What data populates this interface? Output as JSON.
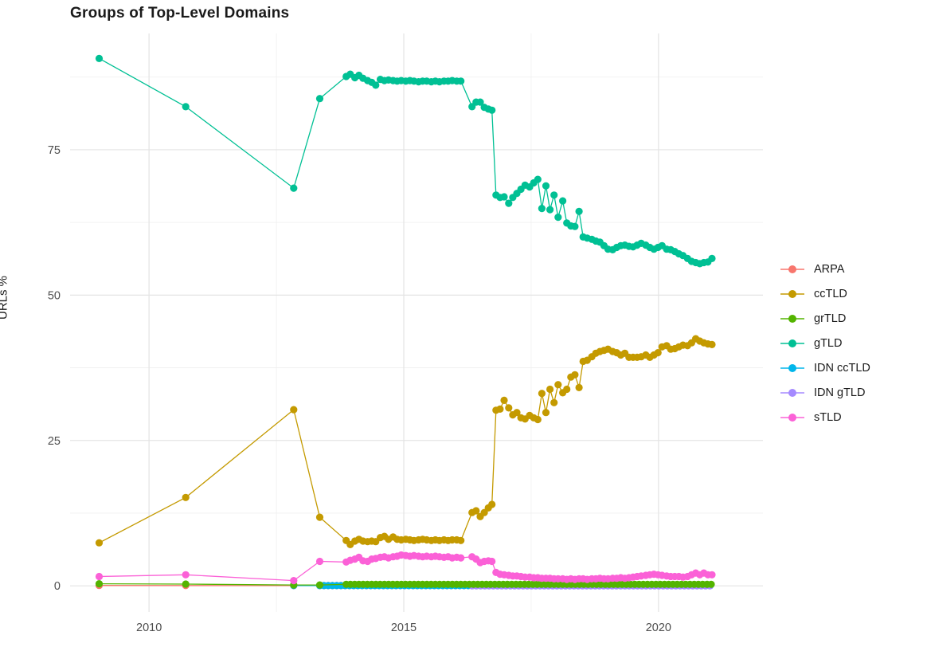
{
  "title": "Groups of Top-Level Domains",
  "chart_data": {
    "type": "line",
    "title": "Groups of Top-Level Domains",
    "xlabel": "",
    "ylabel": "URLs %",
    "xlim": [
      2008.45,
      2022.05
    ],
    "ylim": [
      -4.5,
      95
    ],
    "x_major_ticks": [
      2010,
      2015,
      2020
    ],
    "x_tick_labels": [
      "2010",
      "2015",
      "2020"
    ],
    "x_minor_ticks": [
      2012.5,
      2017.5
    ],
    "y_major_ticks": [
      0,
      25,
      50,
      75
    ],
    "y_tick_labels": [
      "0",
      "25",
      "50",
      "75"
    ],
    "y_minor_ticks": [
      12.5,
      37.5,
      62.5,
      87.5
    ],
    "grid": true,
    "legend_position": "right",
    "grid_major_color": "#e4e4e4",
    "grid_minor_color": "#efefef",
    "tick_label_color": "#4d4d4d",
    "draw_order": [
      "ARPA",
      "IDN ccTLD",
      "IDN gTLD",
      "grTLD",
      "gTLD",
      "ccTLD",
      "sTLD"
    ],
    "series": [
      {
        "name": "ARPA",
        "color": "#F8766D",
        "points": [
          [
            2009.02,
            0.06
          ],
          [
            2010.72,
            0.05
          ],
          [
            2012.84,
            0.04
          ]
        ],
        "flat": {
          "from": 2013.35,
          "to": 2021.05,
          "step": 0.0833,
          "value": 0.03
        }
      },
      {
        "name": "ccTLD",
        "color": "#C49A00",
        "points": [
          [
            2009.02,
            7.4
          ],
          [
            2010.72,
            15.2
          ],
          [
            2012.84,
            30.3
          ],
          [
            2013.35,
            11.8
          ],
          [
            2013.87,
            7.8
          ],
          [
            2013.95,
            7.1
          ],
          [
            2014.04,
            7.7
          ],
          [
            2014.12,
            8.0
          ],
          [
            2014.2,
            7.7
          ],
          [
            2014.29,
            7.6
          ],
          [
            2014.37,
            7.7
          ],
          [
            2014.45,
            7.6
          ],
          [
            2014.54,
            8.3
          ],
          [
            2014.62,
            8.5
          ],
          [
            2014.7,
            8.0
          ],
          [
            2014.79,
            8.4
          ],
          [
            2014.87,
            8.0
          ],
          [
            2014.95,
            7.9
          ],
          [
            2015.04,
            8.0
          ],
          [
            2015.12,
            7.9
          ],
          [
            2015.2,
            7.8
          ],
          [
            2015.29,
            7.9
          ],
          [
            2015.37,
            8.0
          ],
          [
            2015.45,
            7.9
          ],
          [
            2015.54,
            7.8
          ],
          [
            2015.62,
            7.9
          ],
          [
            2015.7,
            7.8
          ],
          [
            2015.79,
            7.9
          ],
          [
            2015.87,
            7.8
          ],
          [
            2015.95,
            7.9
          ],
          [
            2016.04,
            7.9
          ],
          [
            2016.12,
            7.8
          ],
          [
            2016.34,
            12.6
          ],
          [
            2016.42,
            12.9
          ],
          [
            2016.5,
            11.9
          ],
          [
            2016.58,
            12.6
          ],
          [
            2016.66,
            13.4
          ],
          [
            2016.73,
            14.0
          ],
          [
            2016.81,
            30.2
          ],
          [
            2016.89,
            30.4
          ],
          [
            2016.97,
            31.9
          ],
          [
            2017.06,
            30.6
          ],
          [
            2017.14,
            29.4
          ],
          [
            2017.22,
            29.8
          ],
          [
            2017.3,
            28.9
          ],
          [
            2017.38,
            28.7
          ],
          [
            2017.47,
            29.3
          ],
          [
            2017.55,
            28.9
          ],
          [
            2017.63,
            28.6
          ],
          [
            2017.71,
            33.1
          ],
          [
            2017.79,
            29.8
          ],
          [
            2017.87,
            33.8
          ],
          [
            2017.95,
            31.5
          ],
          [
            2018.03,
            34.6
          ],
          [
            2018.12,
            33.2
          ],
          [
            2018.2,
            33.8
          ],
          [
            2018.28,
            35.9
          ],
          [
            2018.36,
            36.3
          ],
          [
            2018.44,
            34.1
          ],
          [
            2018.52,
            38.6
          ],
          [
            2018.6,
            38.8
          ],
          [
            2018.69,
            39.4
          ],
          [
            2018.77,
            40.0
          ],
          [
            2018.85,
            40.3
          ],
          [
            2018.93,
            40.5
          ],
          [
            2019.01,
            40.7
          ],
          [
            2019.1,
            40.3
          ],
          [
            2019.18,
            40.1
          ],
          [
            2019.26,
            39.7
          ],
          [
            2019.34,
            40.0
          ],
          [
            2019.42,
            39.3
          ],
          [
            2019.5,
            39.3
          ],
          [
            2019.58,
            39.3
          ],
          [
            2019.66,
            39.4
          ],
          [
            2019.75,
            39.7
          ],
          [
            2019.83,
            39.3
          ],
          [
            2019.91,
            39.7
          ],
          [
            2019.99,
            40.1
          ],
          [
            2020.07,
            41.1
          ],
          [
            2020.16,
            41.3
          ],
          [
            2020.24,
            40.7
          ],
          [
            2020.32,
            40.8
          ],
          [
            2020.4,
            41.1
          ],
          [
            2020.48,
            41.4
          ],
          [
            2020.57,
            41.3
          ],
          [
            2020.65,
            41.8
          ],
          [
            2020.73,
            42.5
          ],
          [
            2020.81,
            42.1
          ],
          [
            2020.89,
            41.8
          ],
          [
            2020.97,
            41.6
          ],
          [
            2021.05,
            41.5
          ]
        ]
      },
      {
        "name": "grTLD",
        "color": "#53B400",
        "points": [
          [
            2009.02,
            0.35
          ],
          [
            2010.72,
            0.3
          ],
          [
            2012.84,
            0.15
          ],
          [
            2013.35,
            0.15
          ]
        ],
        "flat": {
          "from": 2013.87,
          "to": 2021.05,
          "step": 0.0833,
          "value": 0.25
        }
      },
      {
        "name": "gTLD",
        "color": "#00C094",
        "points": [
          [
            2009.02,
            90.7
          ],
          [
            2010.72,
            82.4
          ],
          [
            2012.84,
            68.4
          ],
          [
            2013.35,
            83.8
          ],
          [
            2013.87,
            87.6
          ],
          [
            2013.95,
            88.0
          ],
          [
            2014.04,
            87.4
          ],
          [
            2014.12,
            87.8
          ],
          [
            2014.2,
            87.3
          ],
          [
            2014.29,
            86.9
          ],
          [
            2014.37,
            86.6
          ],
          [
            2014.45,
            86.1
          ],
          [
            2014.54,
            87.1
          ],
          [
            2014.62,
            86.9
          ],
          [
            2014.7,
            87.0
          ],
          [
            2014.79,
            86.9
          ],
          [
            2014.87,
            86.8
          ],
          [
            2014.95,
            86.9
          ],
          [
            2015.04,
            86.8
          ],
          [
            2015.12,
            86.9
          ],
          [
            2015.2,
            86.8
          ],
          [
            2015.29,
            86.7
          ],
          [
            2015.37,
            86.8
          ],
          [
            2015.45,
            86.8
          ],
          [
            2015.54,
            86.7
          ],
          [
            2015.62,
            86.8
          ],
          [
            2015.7,
            86.7
          ],
          [
            2015.79,
            86.8
          ],
          [
            2015.87,
            86.8
          ],
          [
            2015.95,
            86.9
          ],
          [
            2016.04,
            86.8
          ],
          [
            2016.12,
            86.8
          ],
          [
            2016.34,
            82.4
          ],
          [
            2016.42,
            83.2
          ],
          [
            2016.5,
            83.2
          ],
          [
            2016.58,
            82.3
          ],
          [
            2016.66,
            82.0
          ],
          [
            2016.73,
            81.8
          ],
          [
            2016.81,
            67.2
          ],
          [
            2016.89,
            66.8
          ],
          [
            2016.97,
            66.9
          ],
          [
            2017.06,
            65.8
          ],
          [
            2017.14,
            66.8
          ],
          [
            2017.22,
            67.5
          ],
          [
            2017.3,
            68.2
          ],
          [
            2017.38,
            68.9
          ],
          [
            2017.47,
            68.6
          ],
          [
            2017.55,
            69.3
          ],
          [
            2017.63,
            69.9
          ],
          [
            2017.71,
            64.9
          ],
          [
            2017.79,
            68.8
          ],
          [
            2017.87,
            64.7
          ],
          [
            2017.95,
            67.2
          ],
          [
            2018.03,
            63.4
          ],
          [
            2018.12,
            66.2
          ],
          [
            2018.2,
            62.4
          ],
          [
            2018.28,
            61.9
          ],
          [
            2018.36,
            61.8
          ],
          [
            2018.44,
            64.4
          ],
          [
            2018.52,
            60.0
          ],
          [
            2018.6,
            59.8
          ],
          [
            2018.69,
            59.6
          ],
          [
            2018.77,
            59.3
          ],
          [
            2018.85,
            59.1
          ],
          [
            2018.93,
            58.5
          ],
          [
            2019.01,
            57.9
          ],
          [
            2019.1,
            57.8
          ],
          [
            2019.18,
            58.2
          ],
          [
            2019.26,
            58.5
          ],
          [
            2019.34,
            58.6
          ],
          [
            2019.42,
            58.4
          ],
          [
            2019.5,
            58.3
          ],
          [
            2019.58,
            58.6
          ],
          [
            2019.66,
            58.9
          ],
          [
            2019.75,
            58.6
          ],
          [
            2019.83,
            58.2
          ],
          [
            2019.91,
            57.9
          ],
          [
            2019.99,
            58.2
          ],
          [
            2020.07,
            58.5
          ],
          [
            2020.16,
            57.9
          ],
          [
            2020.24,
            57.8
          ],
          [
            2020.32,
            57.5
          ],
          [
            2020.4,
            57.1
          ],
          [
            2020.48,
            56.8
          ],
          [
            2020.57,
            56.3
          ],
          [
            2020.65,
            55.8
          ],
          [
            2020.73,
            55.6
          ],
          [
            2020.81,
            55.4
          ],
          [
            2020.89,
            55.6
          ],
          [
            2020.97,
            55.7
          ],
          [
            2021.05,
            56.3
          ]
        ]
      },
      {
        "name": "IDN ccTLD",
        "color": "#00B6EB",
        "points": [
          [
            2012.84,
            0.05
          ]
        ],
        "flat": {
          "from": 2013.35,
          "to": 2021.05,
          "step": 0.0833,
          "value": 0.04
        }
      },
      {
        "name": "IDN gTLD",
        "color": "#A58AFF",
        "points": [],
        "flat": {
          "from": 2016.34,
          "to": 2021.05,
          "step": 0.0833,
          "value": 0.01
        }
      },
      {
        "name": "sTLD",
        "color": "#FB61D7",
        "points": [
          [
            2009.02,
            1.6
          ],
          [
            2010.72,
            1.9
          ],
          [
            2012.84,
            0.9
          ],
          [
            2013.35,
            4.2
          ],
          [
            2013.87,
            4.1
          ],
          [
            2013.95,
            4.4
          ],
          [
            2014.04,
            4.6
          ],
          [
            2014.12,
            4.9
          ],
          [
            2014.2,
            4.3
          ],
          [
            2014.29,
            4.2
          ],
          [
            2014.37,
            4.6
          ],
          [
            2014.45,
            4.7
          ],
          [
            2014.54,
            4.9
          ],
          [
            2014.62,
            5.0
          ],
          [
            2014.7,
            4.8
          ],
          [
            2014.79,
            5.0
          ],
          [
            2014.87,
            5.1
          ],
          [
            2014.95,
            5.3
          ],
          [
            2015.04,
            5.2
          ],
          [
            2015.12,
            5.1
          ],
          [
            2015.2,
            5.2
          ],
          [
            2015.29,
            5.1
          ],
          [
            2015.37,
            5.0
          ],
          [
            2015.45,
            5.1
          ],
          [
            2015.54,
            5.0
          ],
          [
            2015.62,
            5.1
          ],
          [
            2015.7,
            5.0
          ],
          [
            2015.79,
            4.9
          ],
          [
            2015.87,
            5.0
          ],
          [
            2015.95,
            4.8
          ],
          [
            2016.04,
            4.9
          ],
          [
            2016.12,
            4.8
          ],
          [
            2016.34,
            5.0
          ],
          [
            2016.42,
            4.6
          ],
          [
            2016.5,
            4.0
          ],
          [
            2016.58,
            4.2
          ],
          [
            2016.66,
            4.3
          ],
          [
            2016.73,
            4.2
          ],
          [
            2016.81,
            2.3
          ],
          [
            2016.89,
            2.0
          ],
          [
            2016.97,
            1.9
          ],
          [
            2017.06,
            1.8
          ],
          [
            2017.14,
            1.7
          ],
          [
            2017.22,
            1.7
          ],
          [
            2017.3,
            1.6
          ],
          [
            2017.38,
            1.5
          ],
          [
            2017.47,
            1.5
          ],
          [
            2017.55,
            1.4
          ],
          [
            2017.63,
            1.4
          ],
          [
            2017.71,
            1.3
          ],
          [
            2017.79,
            1.3
          ],
          [
            2017.87,
            1.3
          ],
          [
            2017.95,
            1.2
          ],
          [
            2018.03,
            1.2
          ],
          [
            2018.12,
            1.2
          ],
          [
            2018.2,
            1.1
          ],
          [
            2018.28,
            1.2
          ],
          [
            2018.36,
            1.1
          ],
          [
            2018.44,
            1.2
          ],
          [
            2018.52,
            1.2
          ],
          [
            2018.6,
            1.1
          ],
          [
            2018.69,
            1.2
          ],
          [
            2018.77,
            1.2
          ],
          [
            2018.85,
            1.3
          ],
          [
            2018.93,
            1.2
          ],
          [
            2019.01,
            1.2
          ],
          [
            2019.1,
            1.3
          ],
          [
            2019.18,
            1.3
          ],
          [
            2019.26,
            1.4
          ],
          [
            2019.34,
            1.3
          ],
          [
            2019.42,
            1.4
          ],
          [
            2019.5,
            1.5
          ],
          [
            2019.58,
            1.6
          ],
          [
            2019.66,
            1.7
          ],
          [
            2019.75,
            1.8
          ],
          [
            2019.83,
            1.9
          ],
          [
            2019.91,
            2.0
          ],
          [
            2019.99,
            1.9
          ],
          [
            2020.07,
            1.8
          ],
          [
            2020.16,
            1.7
          ],
          [
            2020.24,
            1.6
          ],
          [
            2020.32,
            1.6
          ],
          [
            2020.4,
            1.6
          ],
          [
            2020.48,
            1.5
          ],
          [
            2020.57,
            1.6
          ],
          [
            2020.65,
            1.9
          ],
          [
            2020.73,
            2.2
          ],
          [
            2020.81,
            1.9
          ],
          [
            2020.89,
            2.2
          ],
          [
            2020.97,
            1.9
          ],
          [
            2021.05,
            1.9
          ]
        ]
      }
    ]
  }
}
